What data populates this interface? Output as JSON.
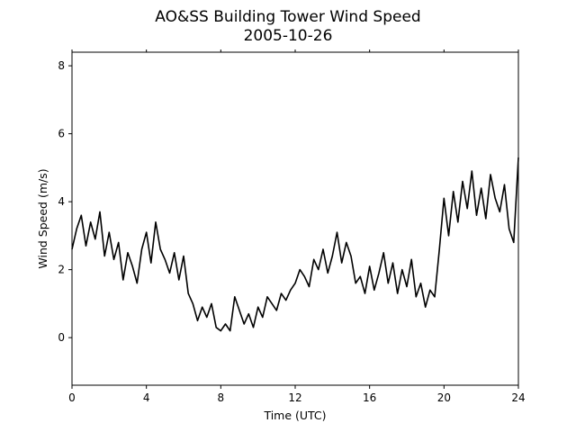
{
  "chart_data": {
    "type": "line",
    "title": "AO&SS Building Tower Wind Speed",
    "subtitle": "2005-10-26",
    "xlabel": "Time (UTC)",
    "ylabel": "Wind Speed (m/s)",
    "xlim": [
      0,
      24
    ],
    "ylim": [
      -1.4,
      8.4
    ],
    "xticks": [
      0,
      4,
      8,
      12,
      16,
      20,
      24
    ],
    "yticks": [
      0,
      2,
      4,
      6,
      8
    ],
    "grid": false,
    "legend": "none",
    "line_color": "#000000",
    "series": [
      {
        "x": [
          0,
          0.25,
          0.5,
          0.75,
          1.0,
          1.25,
          1.5,
          1.75,
          2.0,
          2.25,
          2.5,
          2.75,
          3.0,
          3.25,
          3.5,
          3.75,
          4.0,
          4.25,
          4.5,
          4.75,
          5.0,
          5.25,
          5.5,
          5.75,
          6.0,
          6.25,
          6.5,
          6.75,
          7.0,
          7.25,
          7.5,
          7.75,
          8.0,
          8.25,
          8.5,
          8.75,
          9.0,
          9.25,
          9.5,
          9.75,
          10.0,
          10.25,
          10.5,
          10.75,
          11.0,
          11.25,
          11.5,
          11.75,
          12.0,
          12.25,
          12.5,
          12.75,
          13.0,
          13.25,
          13.5,
          13.75,
          14.0,
          14.25,
          14.5,
          14.75,
          15.0,
          15.25,
          15.5,
          15.75,
          16.0,
          16.25,
          16.5,
          16.75,
          17.0,
          17.25,
          17.5,
          17.75,
          18.0,
          18.25,
          18.5,
          18.75,
          19.0,
          19.25,
          19.5,
          19.75,
          20.0,
          20.25,
          20.5,
          20.75,
          21.0,
          21.25,
          21.5,
          21.75,
          22.0,
          22.25,
          22.5,
          22.75,
          23.0,
          23.25,
          23.5,
          23.75,
          24.0
        ],
        "values": [
          2.6,
          3.2,
          3.6,
          2.7,
          3.4,
          2.9,
          3.7,
          2.4,
          3.1,
          2.3,
          2.8,
          1.7,
          2.5,
          2.1,
          1.6,
          2.6,
          3.1,
          2.2,
          3.4,
          2.6,
          2.3,
          1.9,
          2.5,
          1.7,
          2.4,
          1.3,
          1.0,
          0.5,
          0.9,
          0.6,
          1.0,
          0.3,
          0.2,
          0.4,
          0.2,
          1.2,
          0.8,
          0.4,
          0.7,
          0.3,
          0.9,
          0.6,
          1.2,
          1.0,
          0.8,
          1.3,
          1.1,
          1.4,
          1.6,
          2.0,
          1.8,
          1.5,
          2.3,
          2.0,
          2.6,
          1.9,
          2.4,
          3.1,
          2.2,
          2.8,
          2.4,
          1.6,
          1.8,
          1.3,
          2.1,
          1.4,
          1.9,
          2.5,
          1.6,
          2.2,
          1.3,
          2.0,
          1.5,
          2.3,
          1.2,
          1.6,
          0.9,
          1.4,
          1.2,
          2.6,
          4.1,
          3.0,
          4.3,
          3.4,
          4.6,
          3.8,
          4.9,
          3.6,
          4.4,
          3.5,
          4.8,
          4.1,
          3.7,
          4.5,
          3.2,
          2.8,
          5.3
        ]
      }
    ]
  }
}
